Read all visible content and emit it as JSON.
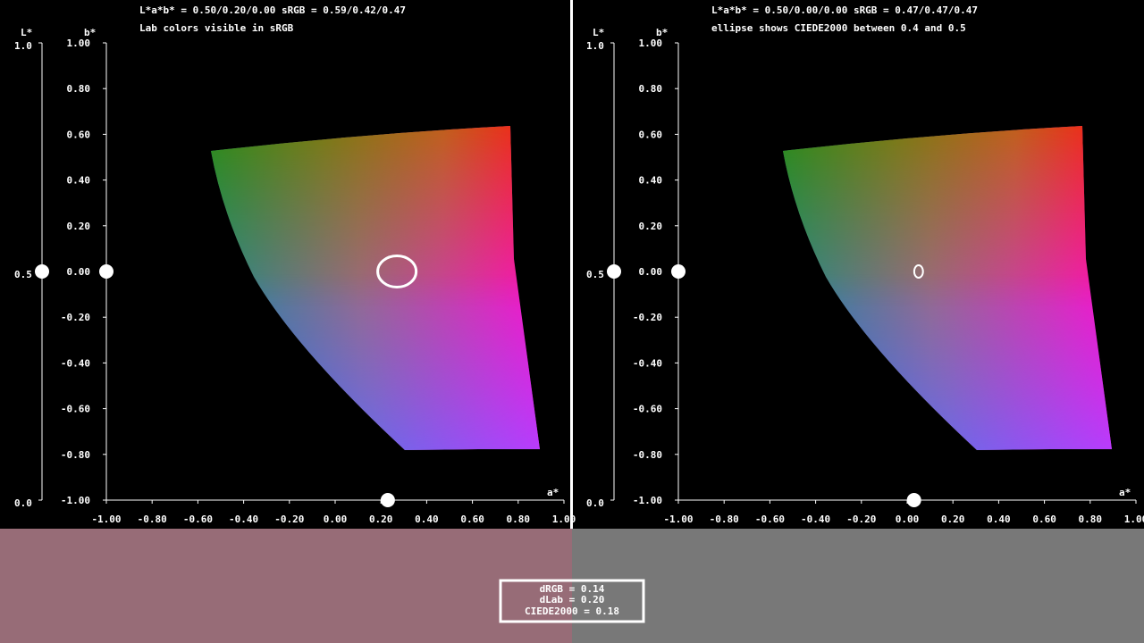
{
  "colors": {
    "background": "#000000",
    "axis": "#ffffff",
    "divider": "#ffffff",
    "left_swatch": "#976C77",
    "right_swatch": "#787878"
  },
  "panels": [
    {
      "id": "left",
      "header_line1": "L*a*b* = 0.50/0.20/0.00 sRGB = 0.59/0.42/0.47",
      "header_line2": "Lab colors visible in sRGB",
      "L_axis_label": "L*",
      "b_axis_label": "b*",
      "a_axis_label": "a*",
      "L_ticks": [
        "1.0",
        "0.5",
        "0.0"
      ],
      "b_ticks": [
        "1.00",
        "0.80",
        "0.60",
        "0.40",
        "0.20",
        "0.00",
        "-0.20",
        "-0.40",
        "-0.60",
        "-0.80",
        "-1.00"
      ],
      "a_ticks": [
        "-1.00",
        "-0.80",
        "-0.60",
        "-0.40",
        "-0.20",
        "0.00",
        "0.20",
        "0.40",
        "0.60",
        "0.80",
        "1.00"
      ],
      "L_value": 0.5,
      "a_value": 0.2,
      "b_value": 0.0,
      "ellipse": {
        "center_a": 0.27,
        "center_b": 0.0,
        "radius_a": 0.08,
        "radius_b": 0.065,
        "stroke": 3
      }
    },
    {
      "id": "right",
      "header_line1": "L*a*b* = 0.50/0.00/0.00 sRGB = 0.47/0.47/0.47",
      "header_line2": "ellipse shows CIEDE2000 between 0.4 and 0.5",
      "L_axis_label": "L*",
      "b_axis_label": "b*",
      "a_axis_label": "a*",
      "L_ticks": [
        "1.0",
        "0.5",
        "0.0"
      ],
      "b_ticks": [
        "1.00",
        "0.80",
        "0.60",
        "0.40",
        "0.20",
        "0.00",
        "-0.20",
        "-0.40",
        "-0.60",
        "-0.80",
        "-1.00"
      ],
      "a_ticks": [
        "-1.00",
        "-0.80",
        "-0.60",
        "-0.40",
        "-0.20",
        "0.00",
        "0.20",
        "0.40",
        "0.60",
        "0.80",
        "1.00"
      ],
      "L_value": 0.5,
      "a_value": 0.0,
      "b_value": 0.0,
      "ellipse": {
        "center_a": 0.05,
        "center_b": 0.0,
        "radius_a": 0.035,
        "radius_b": 0.05,
        "stroke": 2
      }
    }
  ],
  "readout": {
    "line1": "dRGB = 0.14",
    "line2": "dLab = 0.20",
    "line3": "CIEDE2000 = 0.18"
  }
}
